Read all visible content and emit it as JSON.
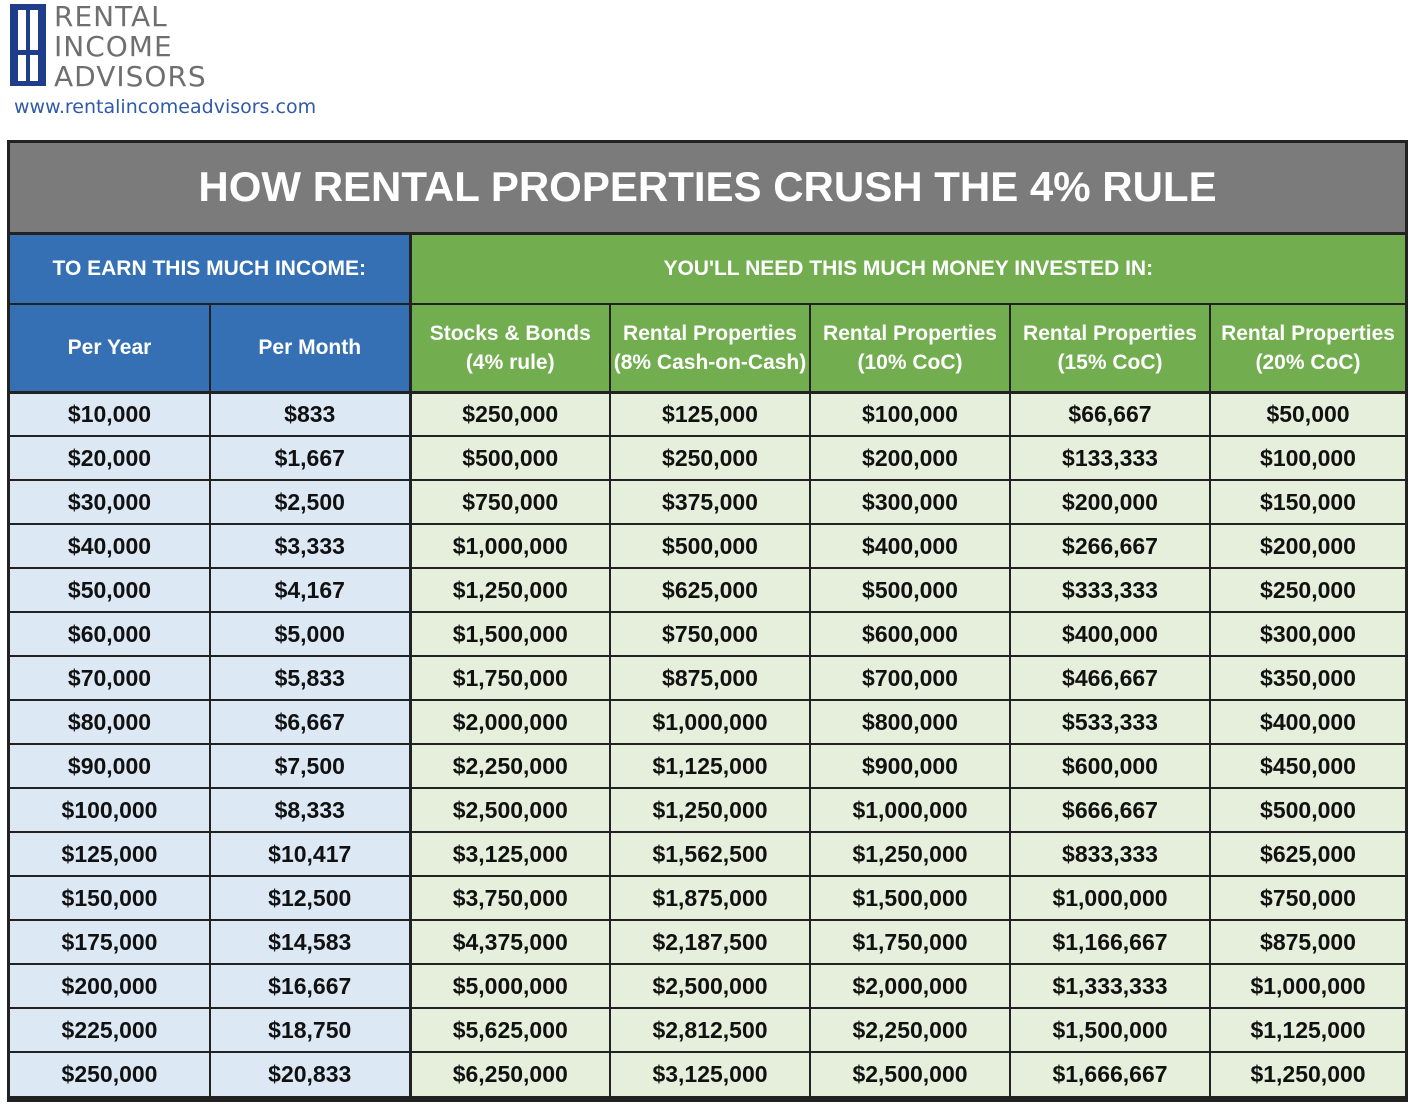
{
  "logo": {
    "line1": "RENTAL",
    "line2": "INCOME",
    "line3": "ADVISORS",
    "color": "#1f3d8a"
  },
  "url": "www.rentalincomeadvisors.com",
  "title": "HOW RENTAL PROPERTIES CRUSH THE 4% RULE",
  "groups": {
    "income": "TO EARN THIS MUCH INCOME:",
    "investment": "YOU'LL NEED THIS MUCH MONEY INVESTED IN:"
  },
  "columns": [
    {
      "line1": "Per Year",
      "line2": ""
    },
    {
      "line1": "Per Month",
      "line2": ""
    },
    {
      "line1": "Stocks & Bonds",
      "line2": "(4% rule)"
    },
    {
      "line1": "Rental Properties",
      "line2": "(8% Cash-on-Cash)"
    },
    {
      "line1": "Rental Properties",
      "line2": "(10% CoC)"
    },
    {
      "line1": "Rental Properties",
      "line2": "(15% CoC)"
    },
    {
      "line1": "Rental Properties",
      "line2": "(20% CoC)"
    }
  ],
  "rows": [
    [
      "$10,000",
      "$833",
      "$250,000",
      "$125,000",
      "$100,000",
      "$66,667",
      "$50,000"
    ],
    [
      "$20,000",
      "$1,667",
      "$500,000",
      "$250,000",
      "$200,000",
      "$133,333",
      "$100,000"
    ],
    [
      "$30,000",
      "$2,500",
      "$750,000",
      "$375,000",
      "$300,000",
      "$200,000",
      "$150,000"
    ],
    [
      "$40,000",
      "$3,333",
      "$1,000,000",
      "$500,000",
      "$400,000",
      "$266,667",
      "$200,000"
    ],
    [
      "$50,000",
      "$4,167",
      "$1,250,000",
      "$625,000",
      "$500,000",
      "$333,333",
      "$250,000"
    ],
    [
      "$60,000",
      "$5,000",
      "$1,500,000",
      "$750,000",
      "$600,000",
      "$400,000",
      "$300,000"
    ],
    [
      "$70,000",
      "$5,833",
      "$1,750,000",
      "$875,000",
      "$700,000",
      "$466,667",
      "$350,000"
    ],
    [
      "$80,000",
      "$6,667",
      "$2,000,000",
      "$1,000,000",
      "$800,000",
      "$533,333",
      "$400,000"
    ],
    [
      "$90,000",
      "$7,500",
      "$2,250,000",
      "$1,125,000",
      "$900,000",
      "$600,000",
      "$450,000"
    ],
    [
      "$100,000",
      "$8,333",
      "$2,500,000",
      "$1,250,000",
      "$1,000,000",
      "$666,667",
      "$500,000"
    ],
    [
      "$125,000",
      "$10,417",
      "$3,125,000",
      "$1,562,500",
      "$1,250,000",
      "$833,333",
      "$625,000"
    ],
    [
      "$150,000",
      "$12,500",
      "$3,750,000",
      "$1,875,000",
      "$1,500,000",
      "$1,000,000",
      "$750,000"
    ],
    [
      "$175,000",
      "$14,583",
      "$4,375,000",
      "$2,187,500",
      "$1,750,000",
      "$1,166,667",
      "$875,000"
    ],
    [
      "$200,000",
      "$16,667",
      "$5,000,000",
      "$2,500,000",
      "$2,000,000",
      "$1,333,333",
      "$1,000,000"
    ],
    [
      "$225,000",
      "$18,750",
      "$5,625,000",
      "$2,812,500",
      "$2,250,000",
      "$1,500,000",
      "$1,125,000"
    ],
    [
      "$250,000",
      "$20,833",
      "$6,250,000",
      "$3,125,000",
      "$2,500,000",
      "$1,666,667",
      "$1,250,000"
    ]
  ]
}
